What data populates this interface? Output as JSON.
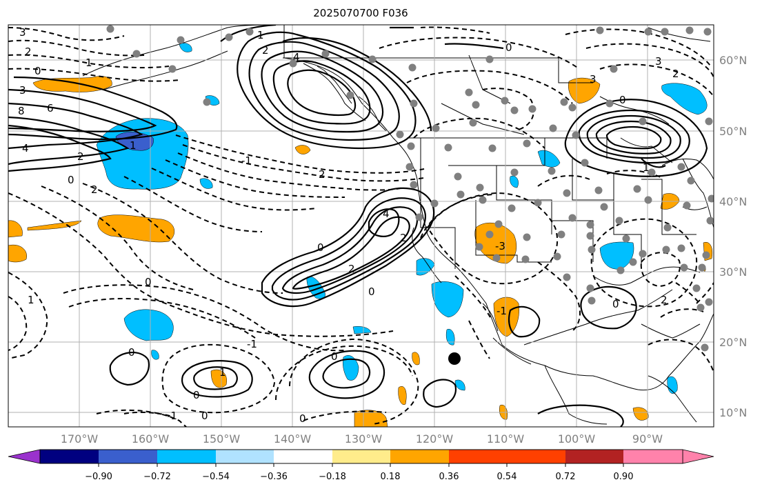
{
  "title": "2025070700 F036",
  "map": {
    "lon_labels": [
      "170°W",
      "160°W",
      "150°W",
      "140°W",
      "130°W",
      "120°W",
      "110°W",
      "100°W",
      "90°W"
    ],
    "lat_labels": [
      "60°N",
      "50°N",
      "40°N",
      "30°N",
      "20°N",
      "10°N"
    ],
    "contour_labels": [
      "3",
      "2",
      "1",
      "0",
      "3",
      "8",
      "6",
      "4",
      "2",
      "0",
      "2",
      "1",
      "4",
      "2",
      "1",
      "0",
      "-1",
      "-1",
      "2",
      "0",
      "1",
      "4",
      "2",
      "0",
      "2",
      "0",
      "0",
      "0",
      "1",
      "0",
      "-1",
      "0",
      "0",
      "-3",
      "3",
      "2",
      "0",
      "1",
      "2",
      "0",
      "3",
      "-1"
    ],
    "point_marker": "black-circle"
  },
  "colorbar": {
    "tick_labels": [
      "−0.90",
      "−0.72",
      "−0.54",
      "−0.36",
      "−0.18",
      "0.18",
      "0.36",
      "0.54",
      "0.72",
      "0.90"
    ],
    "colors": [
      "#9a32cd",
      "#000080",
      "#3a5fcd",
      "#00bfff",
      "#b0e2ff",
      "#ffffff",
      "#ffec8b",
      "#ffa500",
      "#ff4000",
      "#b22222",
      "#ff82ab"
    ]
  }
}
